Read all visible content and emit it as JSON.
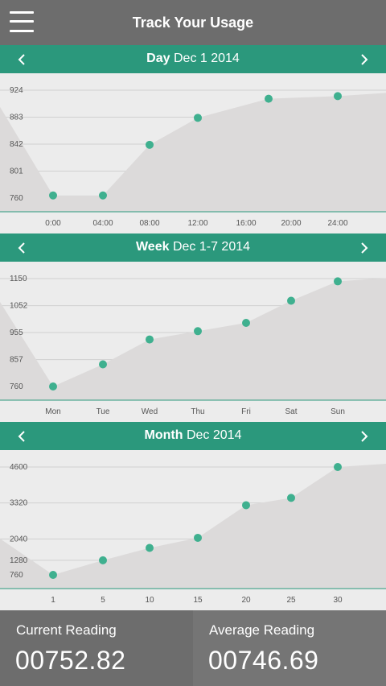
{
  "app": {
    "title": "Track Your Usage"
  },
  "theme": {
    "accent": "#2b987c",
    "point": "#3fb08f",
    "area": "#dcdada",
    "bar": "#6d6d6d"
  },
  "icons": {
    "menu": "menu-icon",
    "prev": "chevron-left-icon",
    "next": "chevron-right-icon"
  },
  "sections": {
    "day": {
      "period": "Day",
      "range": "Dec 1 2014"
    },
    "week": {
      "period": "Week",
      "range": "Dec 1-7 2014"
    },
    "month": {
      "period": "Month",
      "range": "Dec 2014"
    }
  },
  "chart_data": [
    {
      "type": "area",
      "x": [
        "0:00",
        "04:00",
        "08:00",
        "12:00",
        "16:00",
        "20:00",
        "24:00"
      ],
      "yticks": [
        760,
        801,
        842,
        883,
        924
      ],
      "ylim": [
        760,
        924
      ],
      "points": [
        {
          "x": 0,
          "y": 764
        },
        {
          "x": 4,
          "y": 764
        },
        {
          "x": 8,
          "y": 841
        },
        {
          "x": 12,
          "y": 882
        },
        {
          "x": 18,
          "y": 911
        },
        {
          "x": 24,
          "y": 915
        }
      ],
      "grid": true
    },
    {
      "type": "area",
      "x": [
        "Mon",
        "Tue",
        "Wed",
        "Thu",
        "Fri",
        "Sat",
        "Sun"
      ],
      "yticks": [
        760,
        857,
        955,
        1052,
        1150
      ],
      "ylim": [
        760,
        1150
      ],
      "points": [
        {
          "x": 0,
          "y": 760
        },
        {
          "x": 1,
          "y": 840
        },
        {
          "x": 2,
          "y": 930
        },
        {
          "x": 3,
          "y": 960
        },
        {
          "x": 4,
          "y": 990
        },
        {
          "x": 5,
          "y": 1070
        },
        {
          "x": 6,
          "y": 1140
        }
      ],
      "grid": true
    },
    {
      "type": "area",
      "x": [
        "1",
        "5",
        "10",
        "15",
        "20",
        "25",
        "30"
      ],
      "yticks": [
        760,
        1280,
        2040,
        3320,
        4600
      ],
      "ylim": [
        760,
        4600
      ],
      "points": [
        {
          "x": 0,
          "y": 760
        },
        {
          "x": 1,
          "y": 1280
        },
        {
          "x": 2,
          "y": 1720
        },
        {
          "x": 3,
          "y": 2080
        },
        {
          "x": 4,
          "y": 3240
        },
        {
          "x": 5,
          "y": 3500
        },
        {
          "x": 6,
          "y": 4600
        }
      ],
      "grid": true
    }
  ],
  "readings": {
    "current": {
      "label": "Current Reading",
      "value": "00752.82"
    },
    "average": {
      "label": "Average Reading",
      "value": "00746.69"
    }
  }
}
